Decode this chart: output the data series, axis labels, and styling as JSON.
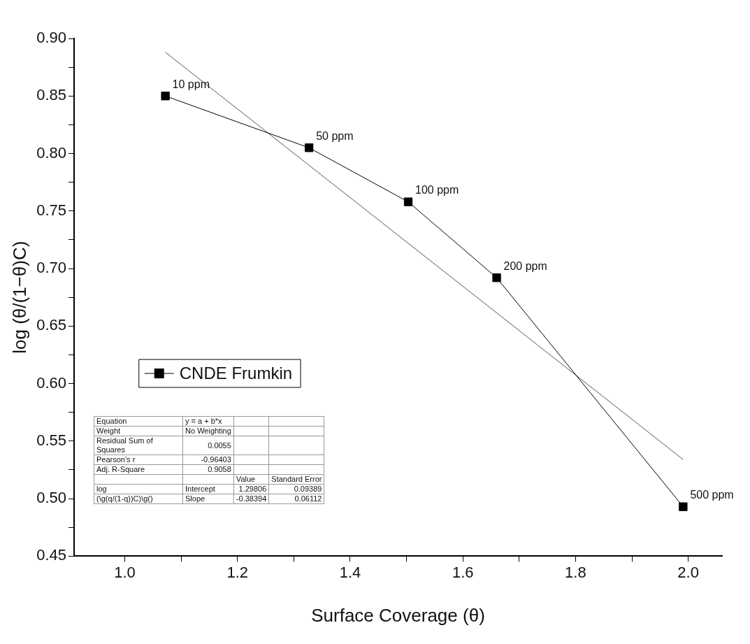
{
  "chart_data": {
    "type": "line",
    "xlabel": "Surface Coverage (θ)",
    "ylabel": "log (θ/(1−θ)C)",
    "xlim": [
      0.91,
      2.06
    ],
    "ylim": [
      0.45,
      0.9
    ],
    "xticks": [
      {
        "value": 1.0,
        "label": "1.0"
      },
      {
        "value": 1.1,
        "label": null
      },
      1.2,
      {
        "value": 1.3,
        "label": null
      },
      1.4,
      {
        "value": 1.5,
        "label": null
      },
      1.6,
      {
        "value": 1.7,
        "label": null
      },
      1.8,
      {
        "value": 1.9,
        "label": null
      },
      {
        "value": 2.0,
        "label": "2.0"
      }
    ],
    "yticks": [
      0.45,
      {
        "value": 0.475,
        "label": null
      },
      {
        "value": 0.5,
        "label": "0.50"
      },
      {
        "value": 0.525,
        "label": null
      },
      0.55,
      {
        "value": 0.575,
        "label": null
      },
      {
        "value": 0.6,
        "label": "0.60"
      },
      {
        "value": 0.625,
        "label": null
      },
      0.65,
      {
        "value": 0.675,
        "label": null
      },
      {
        "value": 0.7,
        "label": "0.70"
      },
      {
        "value": 0.725,
        "label": null
      },
      0.75,
      {
        "value": 0.775,
        "label": null
      },
      {
        "value": 0.8,
        "label": "0.80"
      },
      {
        "value": 0.825,
        "label": null
      },
      0.85,
      {
        "value": 0.875,
        "label": null
      },
      {
        "value": 0.9,
        "label": "0.90"
      }
    ],
    "grid": false,
    "legend": "left",
    "series": [
      {
        "name": "CNDE Frumkin",
        "type": "line",
        "color": "#000000",
        "marker": "square",
        "x": [
          1.072,
          1.327,
          1.503,
          1.66,
          1.991
        ],
        "values": [
          0.85,
          0.805,
          0.758,
          0.692,
          0.493
        ]
      },
      {
        "type": "line",
        "color": "#555555",
        "marker": "none",
        "x": [
          1.072,
          1.991
        ],
        "values": [
          0.888,
          0.534
        ]
      }
    ],
    "annotations": [
      {
        "text": "10 ppm",
        "x": 1.072,
        "y": 0.85
      },
      {
        "text": "50 ppm",
        "x": 1.327,
        "y": 0.805
      },
      {
        "text": "100 ppm",
        "x": 1.503,
        "y": 0.758
      },
      {
        "text": "200 ppm",
        "x": 1.66,
        "y": 0.692
      },
      {
        "text": "500 ppm",
        "x": 1.991,
        "y": 0.493
      },
      "Equation\ty = a + b*x\t\t",
      "Weight\tNo Weighting\t\t",
      "Residual Sum of Squares\t0.0055\t\t",
      "Pearson's r\t-0.96403\t\t",
      "Adj. R-Square\t0.9058\t\t",
      "\t\tValue\tStandard Error",
      "log\tIntercept\t1.29806\t0.09389",
      "(\\g(q/(1-q))C)\\g()\tSlope\t-0.38394\t0.06112"
    ]
  }
}
